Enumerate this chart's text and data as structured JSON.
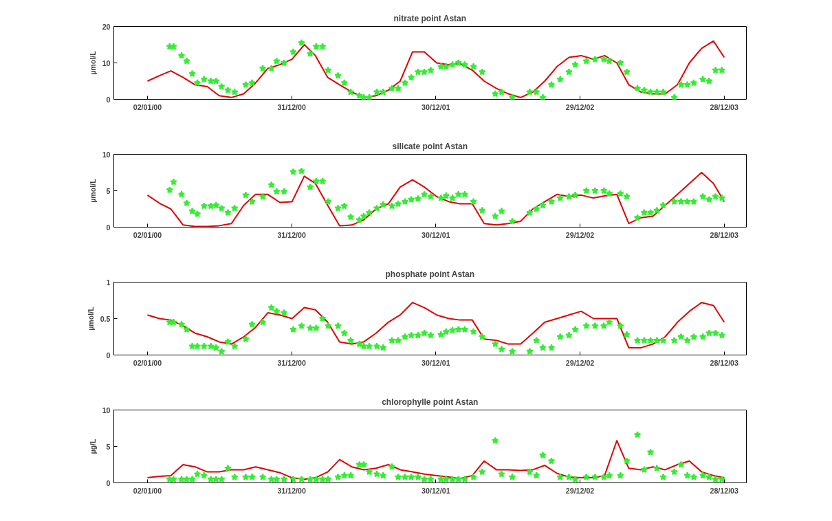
{
  "chart_data": [
    {
      "type": "line",
      "title": "nitrate point Astan",
      "ylabel": "µmol/L",
      "xlim": [
        "1999-10-09",
        "2004-02-22"
      ],
      "ylim": [
        0,
        20
      ],
      "yticks": [
        0,
        10,
        20
      ],
      "xticks": [
        {
          "value": "2000-01-02",
          "label": "02/01/00"
        },
        {
          "value": "2000-12-31",
          "label": "31/12/00"
        },
        {
          "value": "2001-12-30",
          "label": "30/12/01"
        },
        {
          "value": "2002-12-29",
          "label": "29/12/02"
        },
        {
          "value": "2003-12-28",
          "label": "28/12/03"
        }
      ],
      "grid": false,
      "series": [
        {
          "color": "#e00000",
          "line_style": "solid",
          "x": [
            "2000-01-02",
            "2000-02-01",
            "2000-03-01",
            "2000-04-01",
            "2000-05-01",
            "2000-06-01",
            "2000-07-01",
            "2000-08-01",
            "2000-09-01",
            "2000-10-01",
            "2000-11-01",
            "2000-12-01",
            "2001-01-01",
            "2001-02-01",
            "2001-03-01",
            "2001-04-01",
            "2001-05-01",
            "2001-06-01",
            "2001-07-01",
            "2001-08-01",
            "2001-09-01",
            "2001-10-01",
            "2001-11-01",
            "2001-12-01",
            "2002-01-01",
            "2002-02-01",
            "2002-03-01",
            "2002-04-01",
            "2002-05-01",
            "2002-06-01",
            "2002-07-01",
            "2002-08-01",
            "2002-09-01",
            "2002-10-01",
            "2002-11-01",
            "2002-12-01",
            "2003-01-01",
            "2003-02-01",
            "2003-03-01",
            "2003-04-01",
            "2003-05-01",
            "2003-06-01",
            "2003-07-01",
            "2003-08-01",
            "2003-09-01",
            "2003-10-01",
            "2003-11-01",
            "2003-12-01",
            "2003-12-28"
          ],
          "values": [
            5,
            6.5,
            7.8,
            6,
            4,
            3.5,
            1,
            0.5,
            1.5,
            4.5,
            8.5,
            9.5,
            11,
            15,
            12,
            6,
            4,
            2,
            0.5,
            1,
            2.5,
            5,
            13,
            13,
            10,
            9.5,
            9.8,
            8,
            5,
            3,
            1.5,
            0.5,
            2,
            5,
            9,
            11.5,
            12,
            11,
            12,
            10,
            4,
            2,
            1.5,
            1.5,
            4,
            10,
            14,
            16,
            11.5
          ]
        },
        {
          "type": "scatter",
          "color": "#33ee33",
          "marker": "star",
          "x": [
            "2000-02-27",
            "2000-03-08",
            "2000-03-28",
            "2000-04-10",
            "2000-04-24",
            "2000-05-07",
            "2000-05-24",
            "2000-06-10",
            "2000-06-23",
            "2000-07-07",
            "2000-07-23",
            "2000-08-09",
            "2000-09-06",
            "2000-09-22",
            "2000-10-19",
            "2000-11-10",
            "2000-11-23",
            "2000-12-12",
            "2001-01-04",
            "2001-01-25",
            "2001-02-16",
            "2001-03-03",
            "2001-03-19",
            "2001-04-02",
            "2001-04-27",
            "2001-05-13",
            "2001-05-29",
            "2001-06-20",
            "2001-07-01",
            "2001-07-15",
            "2001-08-03",
            "2001-08-19",
            "2001-09-10",
            "2001-09-26",
            "2001-10-13",
            "2001-10-29",
            "2001-11-15",
            "2001-12-01",
            "2001-12-17",
            "2002-01-12",
            "2002-01-25",
            "2002-02-10",
            "2002-02-25",
            "2002-03-13",
            "2002-04-04",
            "2002-04-26",
            "2002-05-29",
            "2002-06-14",
            "2002-07-11",
            "2002-08-24",
            "2002-09-10",
            "2002-09-26",
            "2002-10-18",
            "2002-11-09",
            "2002-12-01",
            "2002-12-17",
            "2003-01-14",
            "2003-02-05",
            "2003-02-27",
            "2003-03-13",
            "2003-04-10",
            "2003-04-26",
            "2003-05-23",
            "2003-06-09",
            "2003-06-25",
            "2003-07-11",
            "2003-07-27",
            "2003-08-24",
            "2003-09-10",
            "2003-09-26",
            "2003-10-12",
            "2003-11-04",
            "2003-11-20",
            "2003-12-06",
            "2003-12-22"
          ],
          "values": [
            14.5,
            14.5,
            12,
            10.5,
            7,
            4.5,
            5.5,
            5,
            5,
            3.5,
            2.5,
            2,
            4,
            4.5,
            8.5,
            8.5,
            10.5,
            10,
            13,
            15.5,
            12.5,
            14.5,
            14.5,
            8,
            6.5,
            4.5,
            2,
            1,
            0.5,
            0.5,
            2,
            2,
            3,
            3,
            4.5,
            6,
            7.5,
            7.5,
            8,
            9,
            9,
            9.5,
            10,
            9.5,
            9,
            7.5,
            1.5,
            2,
            0.5,
            2,
            2,
            0.5,
            4,
            5.5,
            7.5,
            9.5,
            10.5,
            11,
            11,
            10.5,
            10,
            7.5,
            3,
            2.5,
            2,
            2,
            2,
            0.5,
            4,
            4,
            4.5,
            5.5,
            5,
            8,
            8
          ]
        }
      ]
    },
    {
      "type": "line",
      "title": "silicate point Astan",
      "ylabel": "µmol/L",
      "xlim": [
        "1999-10-09",
        "2004-02-22"
      ],
      "ylim": [
        0,
        10
      ],
      "yticks": [
        0,
        5,
        10
      ],
      "xticks": [
        {
          "value": "2000-01-02",
          "label": "02/01/00"
        },
        {
          "value": "2000-12-31",
          "label": "31/12/00"
        },
        {
          "value": "2001-12-30",
          "label": "30/12/01"
        },
        {
          "value": "2002-12-29",
          "label": "29/12/02"
        },
        {
          "value": "2003-12-28",
          "label": "28/12/03"
        }
      ],
      "grid": false,
      "series": [
        {
          "color": "#e00000",
          "line_style": "solid",
          "x": [
            "2000-01-02",
            "2000-02-01",
            "2000-03-01",
            "2000-04-01",
            "2000-05-01",
            "2000-06-01",
            "2000-07-01",
            "2000-08-01",
            "2000-09-01",
            "2000-10-01",
            "2000-11-01",
            "2000-12-01",
            "2001-01-01",
            "2001-02-01",
            "2001-03-01",
            "2001-04-01",
            "2001-05-01",
            "2001-06-01",
            "2001-07-01",
            "2001-08-01",
            "2001-09-01",
            "2001-10-01",
            "2001-11-01",
            "2001-12-01",
            "2002-01-01",
            "2002-02-01",
            "2002-03-01",
            "2002-04-01",
            "2002-05-01",
            "2002-06-01",
            "2002-07-01",
            "2002-08-01",
            "2002-09-01",
            "2002-10-01",
            "2002-11-01",
            "2002-12-01",
            "2003-01-01",
            "2003-02-01",
            "2003-03-01",
            "2003-04-01",
            "2003-05-01",
            "2003-06-01",
            "2003-07-01",
            "2003-08-01",
            "2003-09-01",
            "2003-10-01",
            "2003-11-01",
            "2003-12-01",
            "2003-12-28"
          ],
          "values": [
            4.4,
            3.3,
            2.5,
            0.3,
            0.1,
            0.1,
            0.2,
            0.5,
            3,
            4.5,
            4.5,
            3.4,
            3.5,
            7,
            6,
            3,
            0.2,
            0.3,
            1,
            2.5,
            3.2,
            5.5,
            6.5,
            5.5,
            4.2,
            3.5,
            3.2,
            3.2,
            0.5,
            0.3,
            0.5,
            0.8,
            2.5,
            3.5,
            4.5,
            4.2,
            4.4,
            4,
            4.3,
            4.5,
            0.5,
            1.3,
            1.5,
            3,
            4.5,
            6,
            7.5,
            6,
            3.5
          ]
        },
        {
          "type": "scatter",
          "color": "#33ee33",
          "marker": "star",
          "x": [
            "2000-02-27",
            "2000-03-08",
            "2000-03-28",
            "2000-04-10",
            "2000-04-24",
            "2000-05-07",
            "2000-05-24",
            "2000-06-10",
            "2000-06-23",
            "2000-07-07",
            "2000-07-23",
            "2000-08-09",
            "2000-09-06",
            "2000-09-22",
            "2000-10-19",
            "2000-11-10",
            "2000-11-23",
            "2000-12-12",
            "2001-01-04",
            "2001-01-25",
            "2001-02-16",
            "2001-03-03",
            "2001-03-19",
            "2001-04-02",
            "2001-04-27",
            "2001-05-13",
            "2001-05-29",
            "2001-06-20",
            "2001-07-01",
            "2001-07-15",
            "2001-08-03",
            "2001-08-19",
            "2001-09-10",
            "2001-09-26",
            "2001-10-13",
            "2001-10-29",
            "2001-11-15",
            "2001-12-01",
            "2001-12-17",
            "2002-01-12",
            "2002-01-25",
            "2002-02-10",
            "2002-02-25",
            "2002-03-13",
            "2002-04-04",
            "2002-04-26",
            "2002-05-29",
            "2002-06-14",
            "2002-07-11",
            "2002-08-24",
            "2002-09-10",
            "2002-09-26",
            "2002-10-18",
            "2002-11-09",
            "2002-12-01",
            "2002-12-17",
            "2003-01-14",
            "2003-02-05",
            "2003-02-27",
            "2003-03-13",
            "2003-04-10",
            "2003-04-26",
            "2003-05-23",
            "2003-06-09",
            "2003-06-25",
            "2003-07-11",
            "2003-07-27",
            "2003-08-24",
            "2003-09-10",
            "2003-09-26",
            "2003-10-12",
            "2003-11-04",
            "2003-11-20",
            "2003-12-06",
            "2003-12-22"
          ],
          "values": [
            5.1,
            6.2,
            4.5,
            3.3,
            2.2,
            1.8,
            2.9,
            2.9,
            3,
            2.6,
            2,
            2.6,
            4.4,
            3.5,
            4.2,
            5.8,
            4.9,
            4.9,
            7.6,
            7.7,
            5.5,
            6.3,
            6.3,
            3.5,
            2.6,
            2.9,
            1.4,
            1,
            1.5,
            2,
            2.6,
            3.1,
            2.9,
            3.2,
            3.5,
            3.8,
            3.9,
            4.5,
            4.2,
            4,
            4.3,
            4,
            4.5,
            4.5,
            3.5,
            2.3,
            1.5,
            2.2,
            0.8,
            2,
            2.5,
            3,
            3.5,
            4,
            4.2,
            4.4,
            5,
            5,
            5,
            4.6,
            4.6,
            4.2,
            1.3,
            2,
            2,
            2.3,
            3,
            3.5,
            3.5,
            3.5,
            3.5,
            4.2,
            3.8,
            4.2,
            4
          ]
        }
      ]
    },
    {
      "type": "line",
      "title": "phosphate point Astan",
      "ylabel": "µmol/L",
      "xlim": [
        "1999-10-09",
        "2004-02-22"
      ],
      "ylim": [
        0,
        1
      ],
      "yticks": [
        0,
        0.5,
        1
      ],
      "xticks": [
        {
          "value": "2000-01-02",
          "label": "02/01/00"
        },
        {
          "value": "2000-12-31",
          "label": "31/12/00"
        },
        {
          "value": "2001-12-30",
          "label": "30/12/01"
        },
        {
          "value": "2002-12-29",
          "label": "29/12/02"
        },
        {
          "value": "2003-12-28",
          "label": "28/12/03"
        }
      ],
      "grid": false,
      "series": [
        {
          "color": "#e00000",
          "line_style": "solid",
          "x": [
            "2000-01-02",
            "2000-02-01",
            "2000-03-01",
            "2000-04-01",
            "2000-05-01",
            "2000-06-01",
            "2000-07-01",
            "2000-08-01",
            "2000-09-01",
            "2000-10-01",
            "2000-11-01",
            "2000-12-01",
            "2001-01-01",
            "2001-02-01",
            "2001-03-01",
            "2001-04-01",
            "2001-05-01",
            "2001-06-01",
            "2001-07-01",
            "2001-08-01",
            "2001-09-01",
            "2001-10-01",
            "2001-11-01",
            "2001-12-01",
            "2002-01-01",
            "2002-02-01",
            "2002-03-01",
            "2002-04-01",
            "2002-05-01",
            "2002-06-01",
            "2002-07-01",
            "2002-08-01",
            "2002-09-01",
            "2002-10-01",
            "2002-11-01",
            "2002-12-01",
            "2003-01-01",
            "2003-02-01",
            "2003-03-01",
            "2003-04-01",
            "2003-05-01",
            "2003-06-01",
            "2003-07-01",
            "2003-08-01",
            "2003-09-01",
            "2003-10-01",
            "2003-11-01",
            "2003-12-01",
            "2003-12-28"
          ],
          "values": [
            0.55,
            0.5,
            0.48,
            0.4,
            0.3,
            0.25,
            0.18,
            0.15,
            0.25,
            0.38,
            0.58,
            0.55,
            0.5,
            0.65,
            0.62,
            0.45,
            0.18,
            0.15,
            0.18,
            0.3,
            0.45,
            0.55,
            0.72,
            0.65,
            0.55,
            0.5,
            0.48,
            0.48,
            0.22,
            0.2,
            0.15,
            0.15,
            0.3,
            0.45,
            0.5,
            0.55,
            0.6,
            0.5,
            0.5,
            0.5,
            0.1,
            0.1,
            0.15,
            0.25,
            0.45,
            0.6,
            0.72,
            0.68,
            0.45
          ]
        },
        {
          "type": "scatter",
          "color": "#33ee33",
          "marker": "star",
          "x": [
            "2000-02-27",
            "2000-03-08",
            "2000-03-28",
            "2000-04-10",
            "2000-04-24",
            "2000-05-07",
            "2000-05-24",
            "2000-06-10",
            "2000-06-23",
            "2000-07-07",
            "2000-07-23",
            "2000-08-09",
            "2000-09-06",
            "2000-09-22",
            "2000-10-19",
            "2000-11-10",
            "2000-11-23",
            "2000-12-12",
            "2001-01-04",
            "2001-01-25",
            "2001-02-16",
            "2001-03-03",
            "2001-03-19",
            "2001-04-02",
            "2001-04-27",
            "2001-05-13",
            "2001-05-29",
            "2001-06-20",
            "2001-07-01",
            "2001-07-15",
            "2001-08-03",
            "2001-08-19",
            "2001-09-10",
            "2001-09-26",
            "2001-10-13",
            "2001-10-29",
            "2001-11-15",
            "2001-12-01",
            "2001-12-17",
            "2002-01-12",
            "2002-01-25",
            "2002-02-10",
            "2002-02-25",
            "2002-03-13",
            "2002-04-04",
            "2002-04-26",
            "2002-05-29",
            "2002-06-14",
            "2002-07-11",
            "2002-08-24",
            "2002-09-10",
            "2002-09-26",
            "2002-10-18",
            "2002-11-09",
            "2002-12-01",
            "2002-12-17",
            "2003-01-14",
            "2003-02-05",
            "2003-02-27",
            "2003-03-13",
            "2003-04-10",
            "2003-04-26",
            "2003-05-23",
            "2003-06-09",
            "2003-06-25",
            "2003-07-11",
            "2003-07-27",
            "2003-08-24",
            "2003-09-10",
            "2003-09-26",
            "2003-10-12",
            "2003-11-04",
            "2003-11-20",
            "2003-12-06",
            "2003-12-22"
          ],
          "values": [
            0.45,
            0.45,
            0.42,
            0.35,
            0.12,
            0.12,
            0.12,
            0.12,
            0.1,
            0.05,
            0.18,
            0.12,
            0.22,
            0.42,
            0.45,
            0.65,
            0.6,
            0.58,
            0.35,
            0.4,
            0.37,
            0.37,
            0.5,
            0.4,
            0.4,
            0.3,
            0.2,
            0.15,
            0.12,
            0.12,
            0.12,
            0.1,
            0.2,
            0.2,
            0.25,
            0.27,
            0.27,
            0.3,
            0.27,
            0.28,
            0.32,
            0.34,
            0.35,
            0.35,
            0.32,
            0.25,
            0.15,
            0.08,
            0.05,
            0.05,
            0.2,
            0.1,
            0.1,
            0.25,
            0.27,
            0.35,
            0.4,
            0.4,
            0.4,
            0.45,
            0.4,
            0.28,
            0.2,
            0.2,
            0.2,
            0.2,
            0.2,
            0.2,
            0.25,
            0.2,
            0.25,
            0.25,
            0.3,
            0.3,
            0.27
          ]
        }
      ]
    },
    {
      "type": "line",
      "title": "chlorophylle point Astan",
      "ylabel": "µg/L",
      "xlim": [
        "1999-10-09",
        "2004-02-22"
      ],
      "ylim": [
        0,
        10
      ],
      "yticks": [
        0,
        5,
        10
      ],
      "xticks": [
        {
          "value": "2000-01-02",
          "label": "02/01/00"
        },
        {
          "value": "2000-12-31",
          "label": "31/12/00"
        },
        {
          "value": "2001-12-30",
          "label": "30/12/01"
        },
        {
          "value": "2002-12-29",
          "label": "29/12/02"
        },
        {
          "value": "2003-12-28",
          "label": "28/12/03"
        }
      ],
      "grid": false,
      "series": [
        {
          "color": "#e00000",
          "line_style": "solid",
          "x": [
            "2000-01-02",
            "2000-02-01",
            "2000-03-01",
            "2000-04-01",
            "2000-05-01",
            "2000-06-01",
            "2000-07-01",
            "2000-08-01",
            "2000-09-01",
            "2000-10-01",
            "2000-11-01",
            "2000-12-01",
            "2001-01-01",
            "2001-02-01",
            "2001-03-01",
            "2001-04-01",
            "2001-05-01",
            "2001-06-01",
            "2001-07-01",
            "2001-08-01",
            "2001-09-01",
            "2001-10-01",
            "2001-11-01",
            "2001-12-01",
            "2002-01-01",
            "2002-02-01",
            "2002-03-01",
            "2002-04-01",
            "2002-05-01",
            "2002-06-01",
            "2002-07-01",
            "2002-08-01",
            "2002-09-01",
            "2002-10-01",
            "2002-11-01",
            "2002-12-01",
            "2003-01-01",
            "2003-02-01",
            "2003-03-01",
            "2003-04-01",
            "2003-05-01",
            "2003-06-01",
            "2003-07-01",
            "2003-08-01",
            "2003-09-01",
            "2003-10-01",
            "2003-11-01",
            "2003-12-01",
            "2003-12-28"
          ],
          "values": [
            0.7,
            0.9,
            1,
            2.5,
            2.2,
            1.5,
            1.5,
            1.8,
            1.8,
            2.2,
            1.8,
            1.4,
            0.7,
            0.5,
            0.7,
            1.5,
            3.2,
            2.2,
            1.8,
            2,
            2.5,
            1.8,
            1.5,
            1.2,
            1,
            0.8,
            0.6,
            1,
            3,
            1.8,
            1.8,
            1.7,
            1.8,
            2.4,
            1.3,
            0.8,
            0.7,
            0.7,
            1,
            5.8,
            2,
            1.8,
            2.2,
            1.8,
            2.5,
            3,
            1.5,
            1,
            0.7
          ]
        },
        {
          "type": "scatter",
          "color": "#33ee33",
          "marker": "star",
          "x": [
            "2000-02-27",
            "2000-03-08",
            "2000-03-28",
            "2000-04-10",
            "2000-04-24",
            "2000-05-07",
            "2000-05-24",
            "2000-06-10",
            "2000-06-23",
            "2000-07-07",
            "2000-07-23",
            "2000-08-09",
            "2000-09-06",
            "2000-09-22",
            "2000-10-19",
            "2000-11-10",
            "2000-11-23",
            "2000-12-12",
            "2001-01-04",
            "2001-01-25",
            "2001-02-16",
            "2001-03-03",
            "2001-03-19",
            "2001-04-02",
            "2001-04-27",
            "2001-05-13",
            "2001-05-29",
            "2001-06-20",
            "2001-07-01",
            "2001-07-15",
            "2001-08-03",
            "2001-08-19",
            "2001-09-10",
            "2001-09-26",
            "2001-10-13",
            "2001-10-29",
            "2001-11-15",
            "2001-12-01",
            "2001-12-17",
            "2002-01-12",
            "2002-01-25",
            "2002-02-10",
            "2002-02-25",
            "2002-03-13",
            "2002-04-04",
            "2002-04-26",
            "2002-05-29",
            "2002-06-14",
            "2002-07-11",
            "2002-08-24",
            "2002-09-10",
            "2002-09-26",
            "2002-10-18",
            "2002-11-09",
            "2002-12-01",
            "2002-12-17",
            "2003-01-14",
            "2003-02-05",
            "2003-02-27",
            "2003-03-13",
            "2003-04-10",
            "2003-04-26",
            "2003-05-23",
            "2003-06-09",
            "2003-06-25",
            "2003-07-11",
            "2003-07-27",
            "2003-08-24",
            "2003-09-10",
            "2003-09-26",
            "2003-10-12",
            "2003-11-04",
            "2003-11-20",
            "2003-12-06",
            "2003-12-22"
          ],
          "values": [
            0.5,
            0.5,
            0.5,
            0.5,
            0.5,
            1.2,
            1,
            0.5,
            0.5,
            0.5,
            2,
            0.8,
            0.8,
            0.8,
            0.8,
            0.5,
            0.5,
            0.5,
            0.5,
            0.5,
            0.5,
            0.5,
            0.5,
            0.5,
            0.8,
            1,
            1,
            2.5,
            2.5,
            1.5,
            1.2,
            1,
            2.2,
            0.8,
            0.8,
            0.8,
            0.8,
            0.5,
            0.5,
            0.5,
            0.5,
            0.5,
            0.5,
            0.5,
            0.8,
            1.5,
            5.8,
            1.2,
            0.8,
            1.5,
            1,
            3.8,
            3,
            0.8,
            0.8,
            0.5,
            0.8,
            0.8,
            0.8,
            1,
            1,
            3,
            6.6,
            1.8,
            4.2,
            2,
            0.8,
            1.5,
            2.5,
            1,
            0.8,
            1,
            0.8,
            0.5,
            0.5
          ]
        }
      ]
    }
  ]
}
